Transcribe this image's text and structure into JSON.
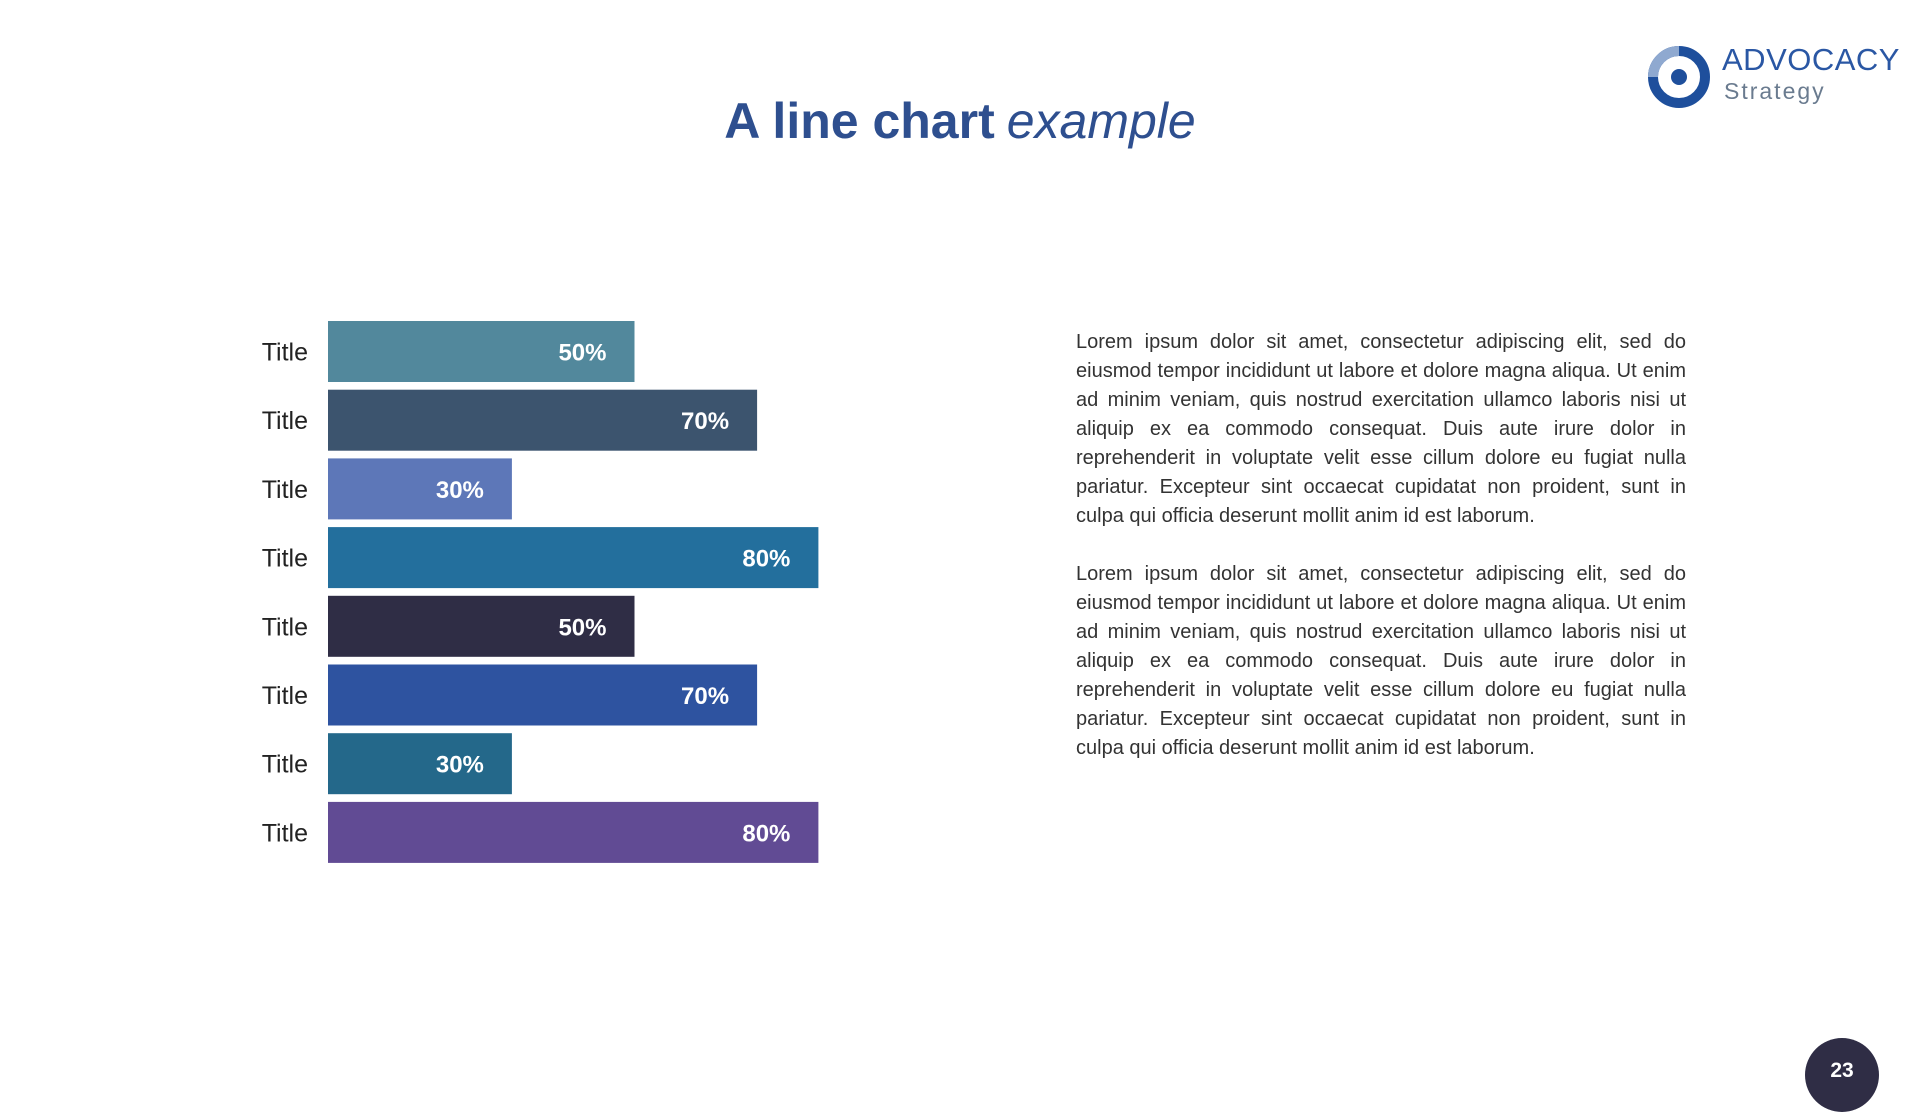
{
  "slide": {
    "title_bold": "A line chart",
    "title_italic": "example",
    "page_number": "23"
  },
  "logo": {
    "name": "ADVOCACY",
    "subtitle": "Strategy",
    "colors": {
      "primary": "#1e4f9c",
      "secondary": "#6a7b8f",
      "ring": "#8fa9d0"
    },
    "icon": "target-ring-icon"
  },
  "chart_data": {
    "type": "bar",
    "orientation": "horizontal",
    "categories": [
      "Title",
      "Title",
      "Title",
      "Title",
      "Title",
      "Title",
      "Title",
      "Title"
    ],
    "values": [
      50,
      70,
      30,
      80,
      50,
      70,
      30,
      80
    ],
    "value_labels": [
      "50%",
      "70%",
      "30%",
      "80%",
      "50%",
      "70%",
      "30%",
      "80%"
    ],
    "colors": [
      "#52889c",
      "#3c546e",
      "#5d77b8",
      "#236f9d",
      "#2f2d45",
      "#2e53a0",
      "#24688a",
      "#614b94"
    ],
    "xlim": [
      0,
      100
    ],
    "grid": false,
    "legend": "none"
  },
  "body": {
    "paragraphs": [
      "Lorem ipsum dolor sit amet, consectetur adipiscing elit, sed do eiusmod tempor incididunt ut labore et dolore magna aliqua. Ut enim ad minim veniam, quis nostrud exercitation ullamco laboris nisi ut aliquip ex ea commodo consequat. Duis aute irure dolor in reprehenderit in voluptate velit esse cillum dolore eu fugiat nulla pariatur. Excepteur sint occaecat cupidatat non proident, sunt in culpa qui officia deserunt mollit anim id est laborum.",
      "Lorem ipsum dolor sit amet, consectetur adipiscing elit, sed do eiusmod tempor incididunt ut labore et dolore magna aliqua. Ut enim ad minim veniam, quis nostrud exercitation ullamco laboris nisi ut aliquip ex ea commodo consequat. Duis aute irure dolor in reprehenderit in voluptate velit esse cillum dolore eu fugiat nulla pariatur. Excepteur sint occaecat cupidatat non proident, sunt in culpa qui officia deserunt mollit anim id est laborum."
    ]
  }
}
